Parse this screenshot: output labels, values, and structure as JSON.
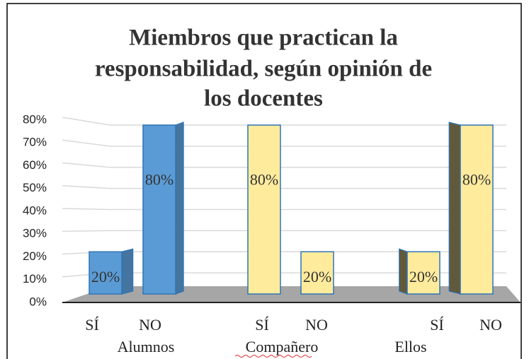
{
  "chart_data": {
    "type": "bar3d",
    "title": [
      "Miembros que practican la",
      "responsabilidad, según opinión de",
      "los docentes"
    ],
    "categories": [
      "SÍ",
      "NO",
      "SÍ",
      "NO",
      "SÍ",
      "NO"
    ],
    "groups": [
      "Alumnos",
      "Compañero",
      "Ellos"
    ],
    "values": [
      20,
      80,
      80,
      20,
      20,
      80
    ],
    "value_labels": [
      "20%",
      "80%",
      "80%",
      "20%",
      "20%",
      "80%"
    ],
    "colors": [
      "#5b9bd5",
      "#5b9bd5",
      "#ffeb9c",
      "#ffeb9c",
      "#ffeb9c",
      "#ffeb9c"
    ],
    "ylim": [
      0,
      80
    ],
    "yticks": [
      {
        "value": 0,
        "label": "0%"
      },
      {
        "value": 10,
        "label": "10%"
      },
      {
        "value": 20,
        "label": "20%"
      },
      {
        "value": 30,
        "label": "30%"
      },
      {
        "value": 40,
        "label": "40%"
      },
      {
        "value": 50,
        "label": "50%"
      },
      {
        "value": 60,
        "label": "60%"
      },
      {
        "value": 70,
        "label": "70%"
      },
      {
        "value": 80,
        "label": "80%"
      }
    ],
    "grid": true
  }
}
